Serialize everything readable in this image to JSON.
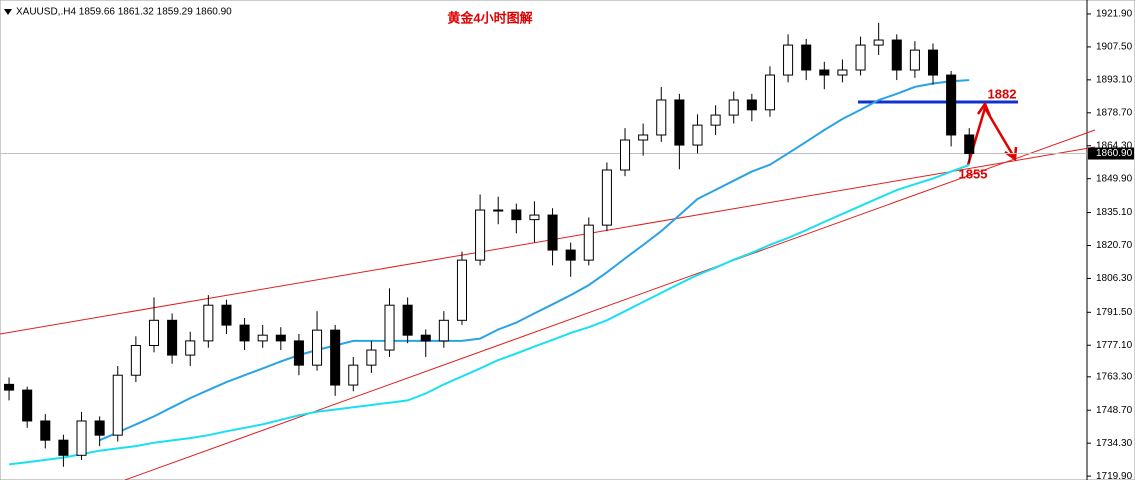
{
  "chart_data": {
    "type": "candlestick",
    "header": "XAUUSD,.H4  1859.66 1861.32 1859.29 1860.90",
    "title": "黄金4小时图解",
    "title_color": "#e00000",
    "candle_color": "#000000",
    "xlim": [
      -0.5,
      59.5
    ],
    "ylim": [
      1718.2,
      1928.0
    ],
    "yticks": [
      {
        "value": 1921.9,
        "label": "1921.90"
      },
      {
        "value": 1907.5,
        "label": "1907.50"
      },
      {
        "value": 1893.1,
        "label": "1893.10"
      },
      {
        "value": 1878.7,
        "label": "1878.70"
      },
      {
        "value": 1864.3,
        "label": "1864.30"
      },
      {
        "value": 1849.9,
        "label": "1849.90"
      },
      {
        "value": 1835.1,
        "label": "1835.10"
      },
      {
        "value": 1820.7,
        "label": "1820.70"
      },
      {
        "value": 1806.3,
        "label": "1806.30"
      },
      {
        "value": 1791.5,
        "label": "1791.50"
      },
      {
        "value": 1777.1,
        "label": "1777.10"
      },
      {
        "value": 1763.3,
        "label": "1763.30"
      },
      {
        "value": 1748.7,
        "label": "1748.70"
      },
      {
        "value": 1734.3,
        "label": "1734.30"
      },
      {
        "value": 1719.9,
        "label": "1719.90"
      }
    ],
    "current_price": {
      "value": 1860.9,
      "label": "1860.90"
    },
    "candles": {
      "open": [
        1760,
        1757.5,
        1744,
        1735.6,
        1729,
        1744,
        1737.8,
        1764,
        1777,
        1788,
        1772.8,
        1779,
        1794.6,
        1785.9,
        1779,
        1781.5,
        1779,
        1768.4,
        1783.7,
        1759.7,
        1768.4,
        1775,
        1794.6,
        1781.5,
        1779,
        1788,
        1814.3,
        1836.2,
        1836.2,
        1832,
        1834,
        1818.7,
        1814.3,
        1829.6,
        1853.7,
        1866.8,
        1869,
        1884.3,
        1864.6,
        1873.3,
        1877.7,
        1884.3,
        1880,
        1895.2,
        1908.3,
        1897.4,
        1895.2,
        1897.4,
        1908.3,
        1910.5,
        1897.4,
        1906.1,
        1895.2,
        1869
      ],
      "high": [
        1763,
        1759,
        1747,
        1738,
        1748,
        1746,
        1768,
        1781,
        1798,
        1791,
        1783,
        1799,
        1797,
        1789,
        1786,
        1785,
        1782,
        1792,
        1786,
        1772,
        1779,
        1802,
        1798,
        1784,
        1792,
        1818,
        1843,
        1842,
        1839,
        1840,
        1837,
        1822,
        1833,
        1857,
        1872,
        1874,
        1890,
        1887,
        1878,
        1882,
        1888,
        1887,
        1899,
        1913,
        1911,
        1901,
        1902,
        1912,
        1918,
        1913,
        1910,
        1909,
        1897,
        1872
      ],
      "low": [
        1753,
        1741,
        1732,
        1724,
        1727,
        1733,
        1735,
        1761,
        1774,
        1769,
        1768,
        1776,
        1782,
        1775,
        1776,
        1775,
        1764,
        1766,
        1755,
        1757,
        1765,
        1772,
        1778,
        1772,
        1776,
        1786,
        1812,
        1830,
        1826,
        1822,
        1812,
        1807,
        1812,
        1827,
        1851,
        1860,
        1866,
        1854,
        1861,
        1869,
        1874,
        1875,
        1877,
        1892,
        1893,
        1889,
        1892,
        1895,
        1904,
        1893,
        1894,
        1891,
        1864,
        1857
      ],
      "close": [
        1757.5,
        1744,
        1735.6,
        1729,
        1744,
        1737.8,
        1764,
        1777,
        1788,
        1772.8,
        1779,
        1794.6,
        1785.9,
        1779,
        1781.5,
        1779,
        1768.4,
        1783.7,
        1759.7,
        1768.4,
        1775,
        1794.6,
        1781.5,
        1779,
        1788,
        1814.3,
        1836.2,
        1836.2,
        1832,
        1834,
        1818.7,
        1814.3,
        1829.6,
        1853.7,
        1866.8,
        1869,
        1884.3,
        1864.6,
        1873.3,
        1877.7,
        1884.3,
        1880,
        1895.2,
        1908.3,
        1897.4,
        1895.2,
        1897.4,
        1908.3,
        1910.5,
        1897.4,
        1906.1,
        1895.2,
        1869,
        1860.9
      ]
    },
    "moving_averages": [
      {
        "color": "#29a3e6",
        "values": [
          null,
          null,
          null,
          null,
          null,
          1735.6,
          1739,
          1742.5,
          1746,
          1750,
          1754,
          1757.5,
          1761,
          1764,
          1767,
          1770,
          1772.8,
          1775,
          1777,
          1779,
          1779,
          1779,
          1779,
          1779,
          1779,
          1779,
          1780,
          1784,
          1787,
          1791,
          1795,
          1799,
          1803.4,
          1809,
          1815,
          1820.9,
          1827,
          1834,
          1841,
          1845,
          1849,
          1853,
          1856,
          1861,
          1866,
          1871.2,
          1876,
          1880,
          1884.3,
          1887,
          1890,
          1891.5,
          1892.5,
          1893
        ]
      },
      {
        "color": "#19e0f0",
        "values": [
          1725,
          1726,
          1727,
          1728,
          1729.5,
          1731,
          1732,
          1733,
          1734.5,
          1735.5,
          1736.5,
          1737.8,
          1739.5,
          1741,
          1742.5,
          1744.5,
          1746.5,
          1748,
          1749,
          1750,
          1751,
          1752,
          1753,
          1756,
          1760,
          1763.5,
          1767,
          1770.6,
          1773.5,
          1776.5,
          1779.5,
          1782.5,
          1785,
          1788,
          1792,
          1796,
          1800,
          1804,
          1807.8,
          1811,
          1814.5,
          1817.5,
          1821,
          1824,
          1827.4,
          1831,
          1834.5,
          1838,
          1841.5,
          1844.9,
          1847.5,
          1850,
          1853,
          1855.9
        ]
      }
    ],
    "annotations": [
      "1882",
      "1855"
    ],
    "annotation_color": "#e00000"
  }
}
